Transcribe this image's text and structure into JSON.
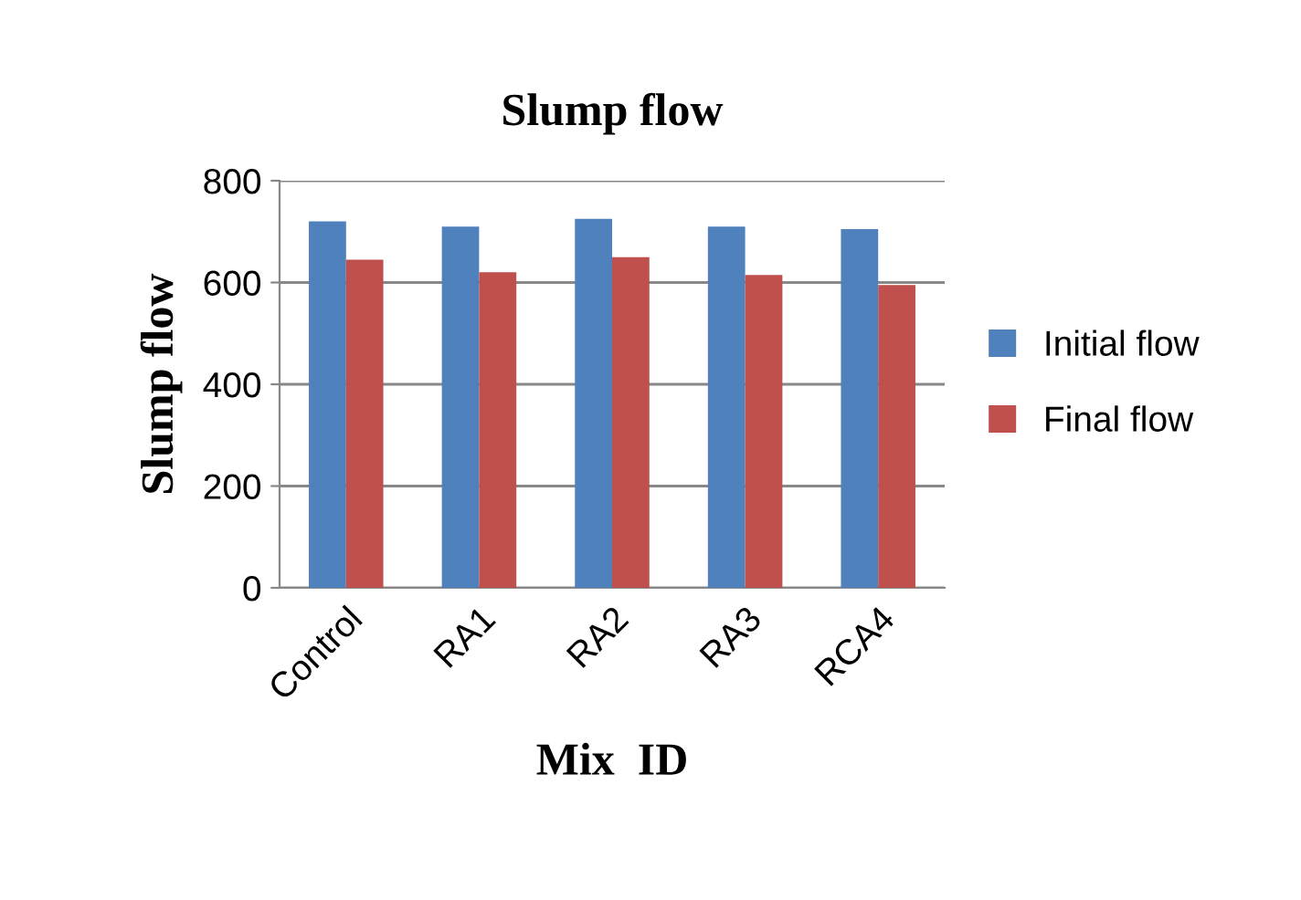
{
  "chart_data": {
    "type": "bar",
    "title": "Slump flow",
    "xlabel": "Mix  ID",
    "ylabel": "Slump flow",
    "categories": [
      "Control",
      "RA1",
      "RA2",
      "RA3",
      "RCA4"
    ],
    "series": [
      {
        "name": "Initial flow",
        "color": "#4f81bd",
        "values": [
          720,
          710,
          725,
          710,
          705
        ]
      },
      {
        "name": "Final flow",
        "color": "#c0504d",
        "values": [
          645,
          620,
          650,
          615,
          595
        ]
      }
    ],
    "ylim": [
      0,
      800
    ],
    "yticks": [
      0,
      200,
      400,
      600,
      800
    ],
    "grid": "y",
    "legend": "right"
  }
}
